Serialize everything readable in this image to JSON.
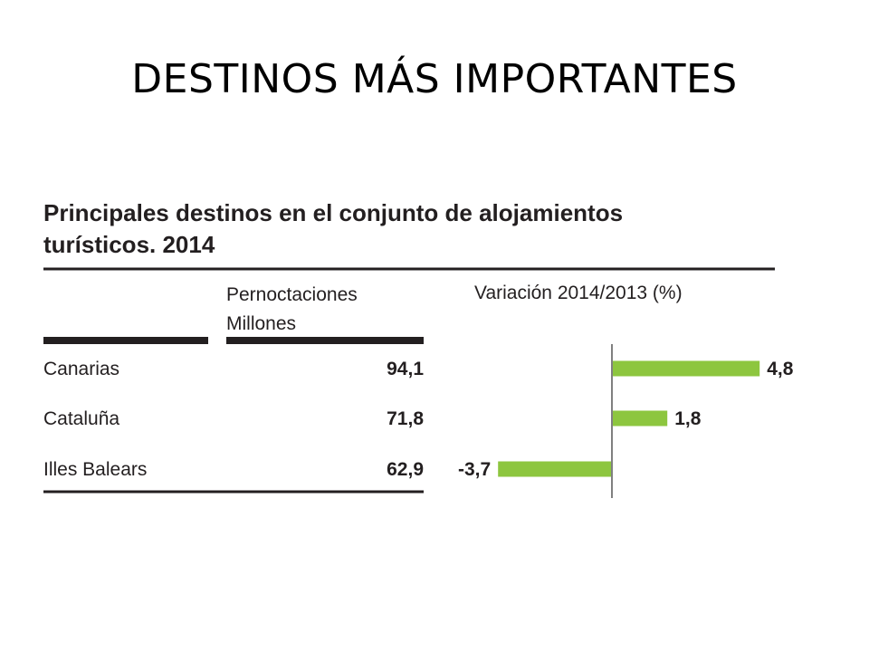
{
  "slide": {
    "title": "DESTINOS MÁS IMPORTANTES"
  },
  "chart_data": {
    "type": "table",
    "title_line1": "Principales destinos en el conjunto de alojamientos",
    "title_line2": "turísticos. 2014",
    "columns": {
      "values_header_line1": "Pernoctaciones",
      "values_header_line2": "Millones",
      "variation_header": "Variación 2014/2013 (%)"
    },
    "rows": [
      {
        "destination": "Canarias",
        "pernoctaciones": "94,1",
        "variation": 4.8,
        "variation_label": "4,8"
      },
      {
        "destination": "Cataluña",
        "pernoctaciones": "71,8",
        "variation": 1.8,
        "variation_label": "1,8"
      },
      {
        "destination": "Illes Balears",
        "pernoctaciones": "62,9",
        "variation": -3.7,
        "variation_label": "-3,7"
      }
    ],
    "bar_color": "#8dc63f",
    "text_color": "#231f20",
    "rule_color": "#231f20",
    "axis_color": "#808080"
  }
}
